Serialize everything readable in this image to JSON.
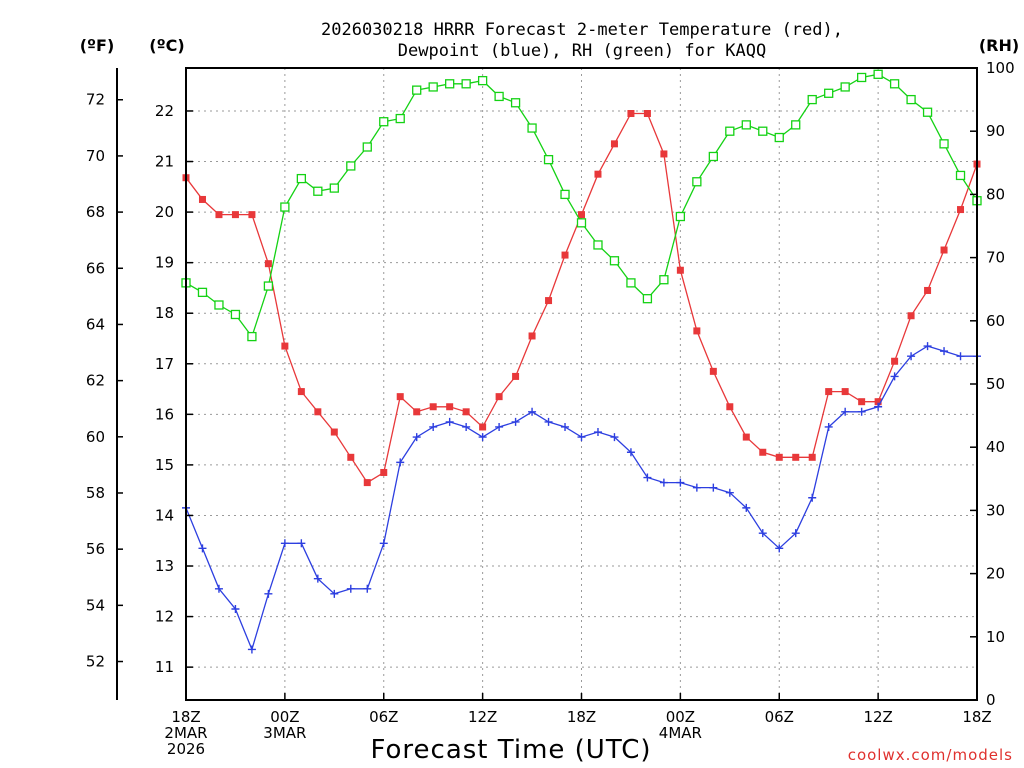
{
  "chart_data": {
    "type": "line",
    "title_lines": [
      "2026030218 HRRR Forecast 2-meter Temperature (red),",
      "Dewpoint (blue), RH (green) for KAQQ"
    ],
    "xlabel": "Forecast Time (UTC)",
    "credit": "coolwx.com/models",
    "units": {
      "fahrenheit": "(ºF)",
      "celsius": "(ºC)",
      "rh": "(RH)"
    },
    "forecast_hours": [
      0,
      1,
      2,
      3,
      4,
      5,
      6,
      7,
      8,
      9,
      10,
      11,
      12,
      13,
      14,
      15,
      16,
      17,
      18,
      19,
      20,
      21,
      22,
      23,
      24,
      25,
      26,
      27,
      28,
      29,
      30,
      31,
      32,
      33,
      34,
      35,
      36,
      37,
      38,
      39,
      40,
      41,
      42,
      43,
      44,
      45,
      46,
      47,
      48
    ],
    "x_ticks": [
      {
        "hour": 0,
        "lines": [
          "18Z",
          "2MAR",
          "2026"
        ]
      },
      {
        "hour": 6,
        "lines": [
          "00Z",
          "3MAR"
        ]
      },
      {
        "hour": 12,
        "lines": [
          "06Z"
        ]
      },
      {
        "hour": 18,
        "lines": [
          "12Z"
        ]
      },
      {
        "hour": 24,
        "lines": [
          "18Z"
        ]
      },
      {
        "hour": 30,
        "lines": [
          "00Z",
          "4MAR"
        ]
      },
      {
        "hour": 36,
        "lines": [
          "06Z"
        ]
      },
      {
        "hour": 42,
        "lines": [
          "12Z"
        ]
      },
      {
        "hour": 48,
        "lines": [
          "18Z"
        ]
      }
    ],
    "celsius_range": [
      10.35,
      22.85
    ],
    "celsius_ticks": [
      11,
      12,
      13,
      14,
      15,
      16,
      17,
      18,
      19,
      20,
      21,
      22
    ],
    "fahrenheit_ticks": [
      52,
      54,
      56,
      58,
      60,
      62,
      64,
      66,
      68,
      70,
      72
    ],
    "rh_range": [
      0,
      100
    ],
    "rh_ticks": [
      0,
      10,
      20,
      30,
      40,
      50,
      60,
      70,
      80,
      90,
      100
    ],
    "series": [
      {
        "name": "Temperature (red)",
        "unit": "C",
        "color": "#e8383a",
        "marker": "filled-square",
        "values": [
          20.68,
          20.25,
          19.95,
          19.95,
          19.95,
          18.98,
          17.35,
          16.45,
          16.05,
          15.65,
          15.15,
          14.65,
          14.85,
          16.35,
          16.05,
          16.15,
          16.15,
          16.05,
          15.75,
          16.35,
          16.75,
          17.55,
          18.25,
          19.15,
          19.95,
          20.75,
          21.35,
          21.95,
          21.95,
          21.15,
          18.85,
          17.65,
          16.85,
          16.15,
          15.55,
          15.25,
          15.15,
          15.15,
          15.15,
          16.45,
          16.45,
          16.25,
          16.25,
          17.05,
          17.95,
          18.45,
          19.25,
          20.05,
          20.95
        ]
      },
      {
        "name": "Dewpoint (blue)",
        "unit": "C",
        "color": "#2d3fe0",
        "marker": "plus",
        "values": [
          14.15,
          13.35,
          12.55,
          12.15,
          11.35,
          12.45,
          13.45,
          13.45,
          12.75,
          12.45,
          12.55,
          12.55,
          13.45,
          15.05,
          15.55,
          15.75,
          15.85,
          15.75,
          15.55,
          15.75,
          15.85,
          16.05,
          15.85,
          15.75,
          15.55,
          15.65,
          15.55,
          15.25,
          14.75,
          14.65,
          14.65,
          14.55,
          14.55,
          14.45,
          14.15,
          13.65,
          13.35,
          13.65,
          14.35,
          15.75,
          16.05,
          16.05,
          16.15,
          16.75,
          17.15,
          17.35,
          17.25,
          17.15,
          17.15
        ]
      },
      {
        "name": "RH (green)",
        "unit": "%",
        "color": "#14d214",
        "marker": "open-square",
        "values": [
          66.0,
          64.5,
          62.5,
          61.0,
          57.5,
          65.5,
          78.0,
          82.5,
          80.5,
          81.0,
          84.5,
          87.5,
          91.5,
          92.0,
          96.5,
          97.0,
          97.5,
          97.5,
          98.0,
          95.5,
          94.5,
          90.5,
          85.5,
          80.0,
          75.5,
          72.0,
          69.5,
          66.0,
          63.5,
          66.5,
          76.5,
          82.0,
          86.0,
          90.0,
          91.0,
          90.0,
          89.0,
          91.0,
          95.0,
          96.0,
          97.0,
          98.5,
          99.0,
          97.5,
          95.0,
          93.0,
          88.0,
          83.0,
          79.0
        ]
      }
    ]
  }
}
